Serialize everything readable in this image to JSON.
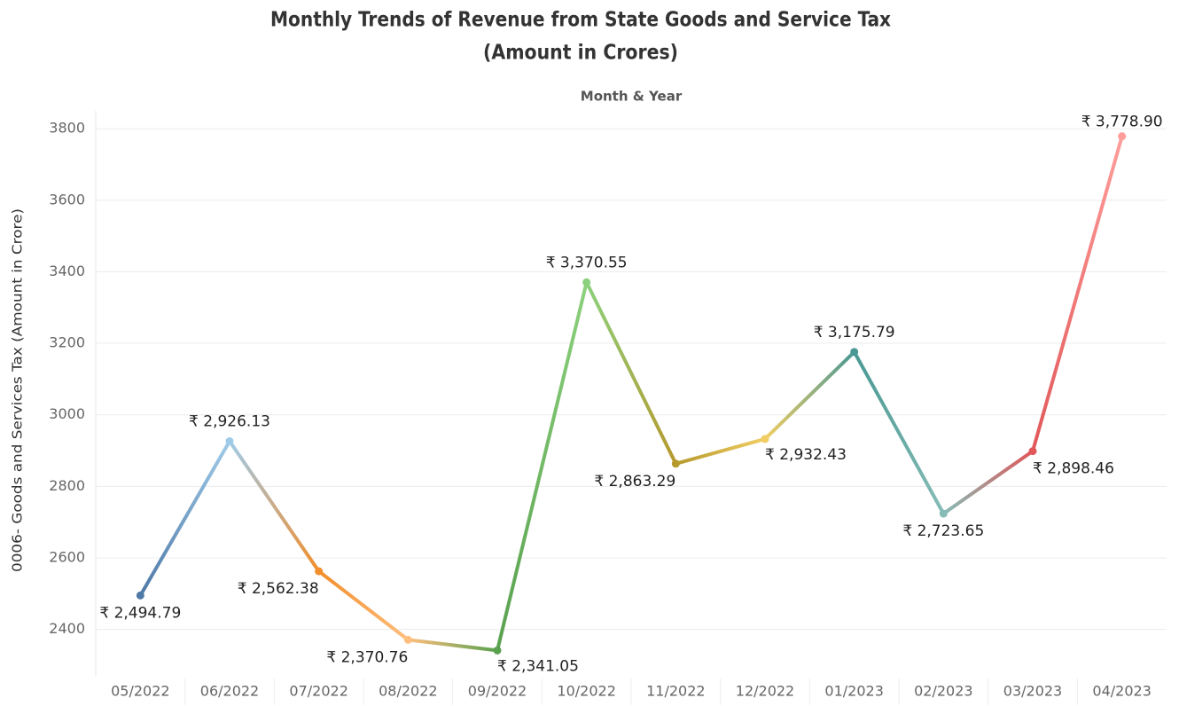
{
  "chart_data": {
    "type": "line",
    "title": "Monthly Trends of Revenue from State Goods and Service Tax",
    "subtitle": "(Amount in Crores)",
    "x_label": "Month & Year",
    "y_label": "0006- Goods and Services Tax (Amount in Crore)",
    "categories": [
      "05/2022",
      "06/2022",
      "07/2022",
      "08/2022",
      "09/2022",
      "10/2022",
      "11/2022",
      "12/2022",
      "01/2023",
      "02/2023",
      "03/2023",
      "04/2023"
    ],
    "series": [
      {
        "colors": [
          "#4e79a7",
          "#a0cbe8",
          "#f28e2b",
          "#ffbe7d",
          "#59a14f",
          "#8cd17d",
          "#b6992d",
          "#f1ce63",
          "#499894",
          "#86bcb6",
          "#e15759",
          "#ff9d9a"
        ],
        "values": [
          2494.79,
          2926.13,
          2562.38,
          2370.76,
          2341.05,
          3370.55,
          2863.29,
          2932.43,
          3175.79,
          2723.65,
          2898.46,
          3778.9
        ],
        "value_labels": [
          "₹ 2,494.79",
          "₹ 2,926.13",
          "₹ 2,562.38",
          "₹ 2,370.76",
          "₹ 2,341.05",
          "₹ 3,370.55",
          "₹ 2,863.29",
          "₹ 2,932.43",
          "₹ 3,175.79",
          "₹ 2,723.65",
          "₹ 2,898.46",
          "₹ 3,778.90"
        ]
      }
    ],
    "ylim": [
      2270,
      3850
    ],
    "yticks": [
      2400,
      2600,
      2800,
      3000,
      3200,
      3400,
      3600,
      3800
    ],
    "grid": true
  }
}
